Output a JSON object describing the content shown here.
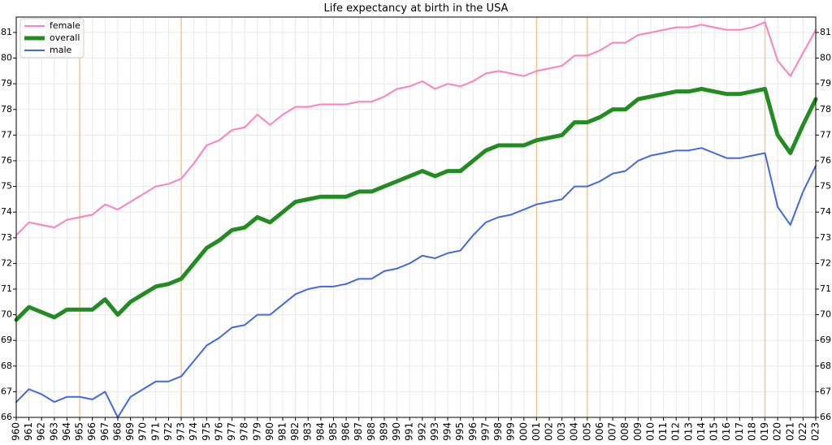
{
  "chart_data": {
    "type": "line",
    "title": "Life expectancy at birth in the USA",
    "xlabel": "",
    "ylabel": "",
    "xlim": [
      1960,
      2023
    ],
    "ylim": [
      66,
      81.6
    ],
    "y_ticks": [
      66,
      67,
      68,
      69,
      70,
      71,
      72,
      73,
      74,
      75,
      76,
      77,
      78,
      79,
      80,
      81
    ],
    "grid": true,
    "legend_position": "top-left",
    "highlight_years": [
      1965,
      1973,
      2001,
      2005,
      2019
    ],
    "colors": {
      "female": "#ff7fbf",
      "overall": "#228b22",
      "male": "#4169e1",
      "highlight": "#f2c48a",
      "grid": "#e8e8e8"
    },
    "x": [
      1960,
      1961,
      1962,
      1963,
      1964,
      1965,
      1966,
      1967,
      1968,
      1969,
      1970,
      1971,
      1972,
      1973,
      1974,
      1975,
      1976,
      1977,
      1978,
      1979,
      1980,
      1981,
      1982,
      1983,
      1984,
      1985,
      1986,
      1987,
      1988,
      1989,
      1990,
      1991,
      1992,
      1993,
      1994,
      1995,
      1996,
      1997,
      1998,
      1999,
      2000,
      2001,
      2002,
      2003,
      2004,
      2005,
      2006,
      2007,
      2008,
      2009,
      2010,
      2011,
      2012,
      2013,
      2014,
      2015,
      2016,
      2017,
      2018,
      2019,
      2020,
      2021,
      2022,
      2023
    ],
    "series": [
      {
        "name": "female",
        "values": [
          73.1,
          73.6,
          73.5,
          73.4,
          73.7,
          73.8,
          73.9,
          74.3,
          74.1,
          74.4,
          74.7,
          75.0,
          75.1,
          75.3,
          75.9,
          76.6,
          76.8,
          77.2,
          77.3,
          77.8,
          77.4,
          77.8,
          78.1,
          78.1,
          78.2,
          78.2,
          78.2,
          78.3,
          78.3,
          78.5,
          78.8,
          78.9,
          79.1,
          78.8,
          79.0,
          78.9,
          79.1,
          79.4,
          79.5,
          79.4,
          79.3,
          79.5,
          79.6,
          79.7,
          80.1,
          80.1,
          80.3,
          80.6,
          80.6,
          80.9,
          81.0,
          81.1,
          81.2,
          81.2,
          81.3,
          81.2,
          81.1,
          81.1,
          81.2,
          81.4,
          79.9,
          79.3,
          80.2,
          81.1
        ]
      },
      {
        "name": "overall",
        "values": [
          69.8,
          70.3,
          70.1,
          69.9,
          70.2,
          70.2,
          70.2,
          70.6,
          70.0,
          70.5,
          70.8,
          71.1,
          71.2,
          71.4,
          72.0,
          72.6,
          72.9,
          73.3,
          73.4,
          73.8,
          73.6,
          74.0,
          74.4,
          74.5,
          74.6,
          74.6,
          74.6,
          74.8,
          74.8,
          75.0,
          75.2,
          75.4,
          75.6,
          75.4,
          75.6,
          75.6,
          76.0,
          76.4,
          76.6,
          76.6,
          76.6,
          76.8,
          76.9,
          77.0,
          77.5,
          77.5,
          77.7,
          78.0,
          78.0,
          78.4,
          78.5,
          78.6,
          78.7,
          78.7,
          78.8,
          78.7,
          78.6,
          78.6,
          78.7,
          78.8,
          77.0,
          76.3,
          77.4,
          78.4
        ]
      },
      {
        "name": "male",
        "values": [
          66.6,
          67.1,
          66.9,
          66.6,
          66.8,
          66.8,
          66.7,
          67.0,
          66.0,
          66.8,
          67.1,
          67.4,
          67.4,
          67.6,
          68.2,
          68.8,
          69.1,
          69.5,
          69.6,
          70.0,
          70.0,
          70.4,
          70.8,
          71.0,
          71.1,
          71.1,
          71.2,
          71.4,
          71.4,
          71.7,
          71.8,
          72.0,
          72.3,
          72.2,
          72.4,
          72.5,
          73.1,
          73.6,
          73.8,
          73.9,
          74.1,
          74.3,
          74.4,
          74.5,
          75.0,
          75.0,
          75.2,
          75.5,
          75.6,
          76.0,
          76.2,
          76.3,
          76.4,
          76.4,
          76.5,
          76.3,
          76.1,
          76.1,
          76.2,
          76.3,
          74.2,
          73.5,
          74.8,
          75.8
        ]
      }
    ]
  }
}
